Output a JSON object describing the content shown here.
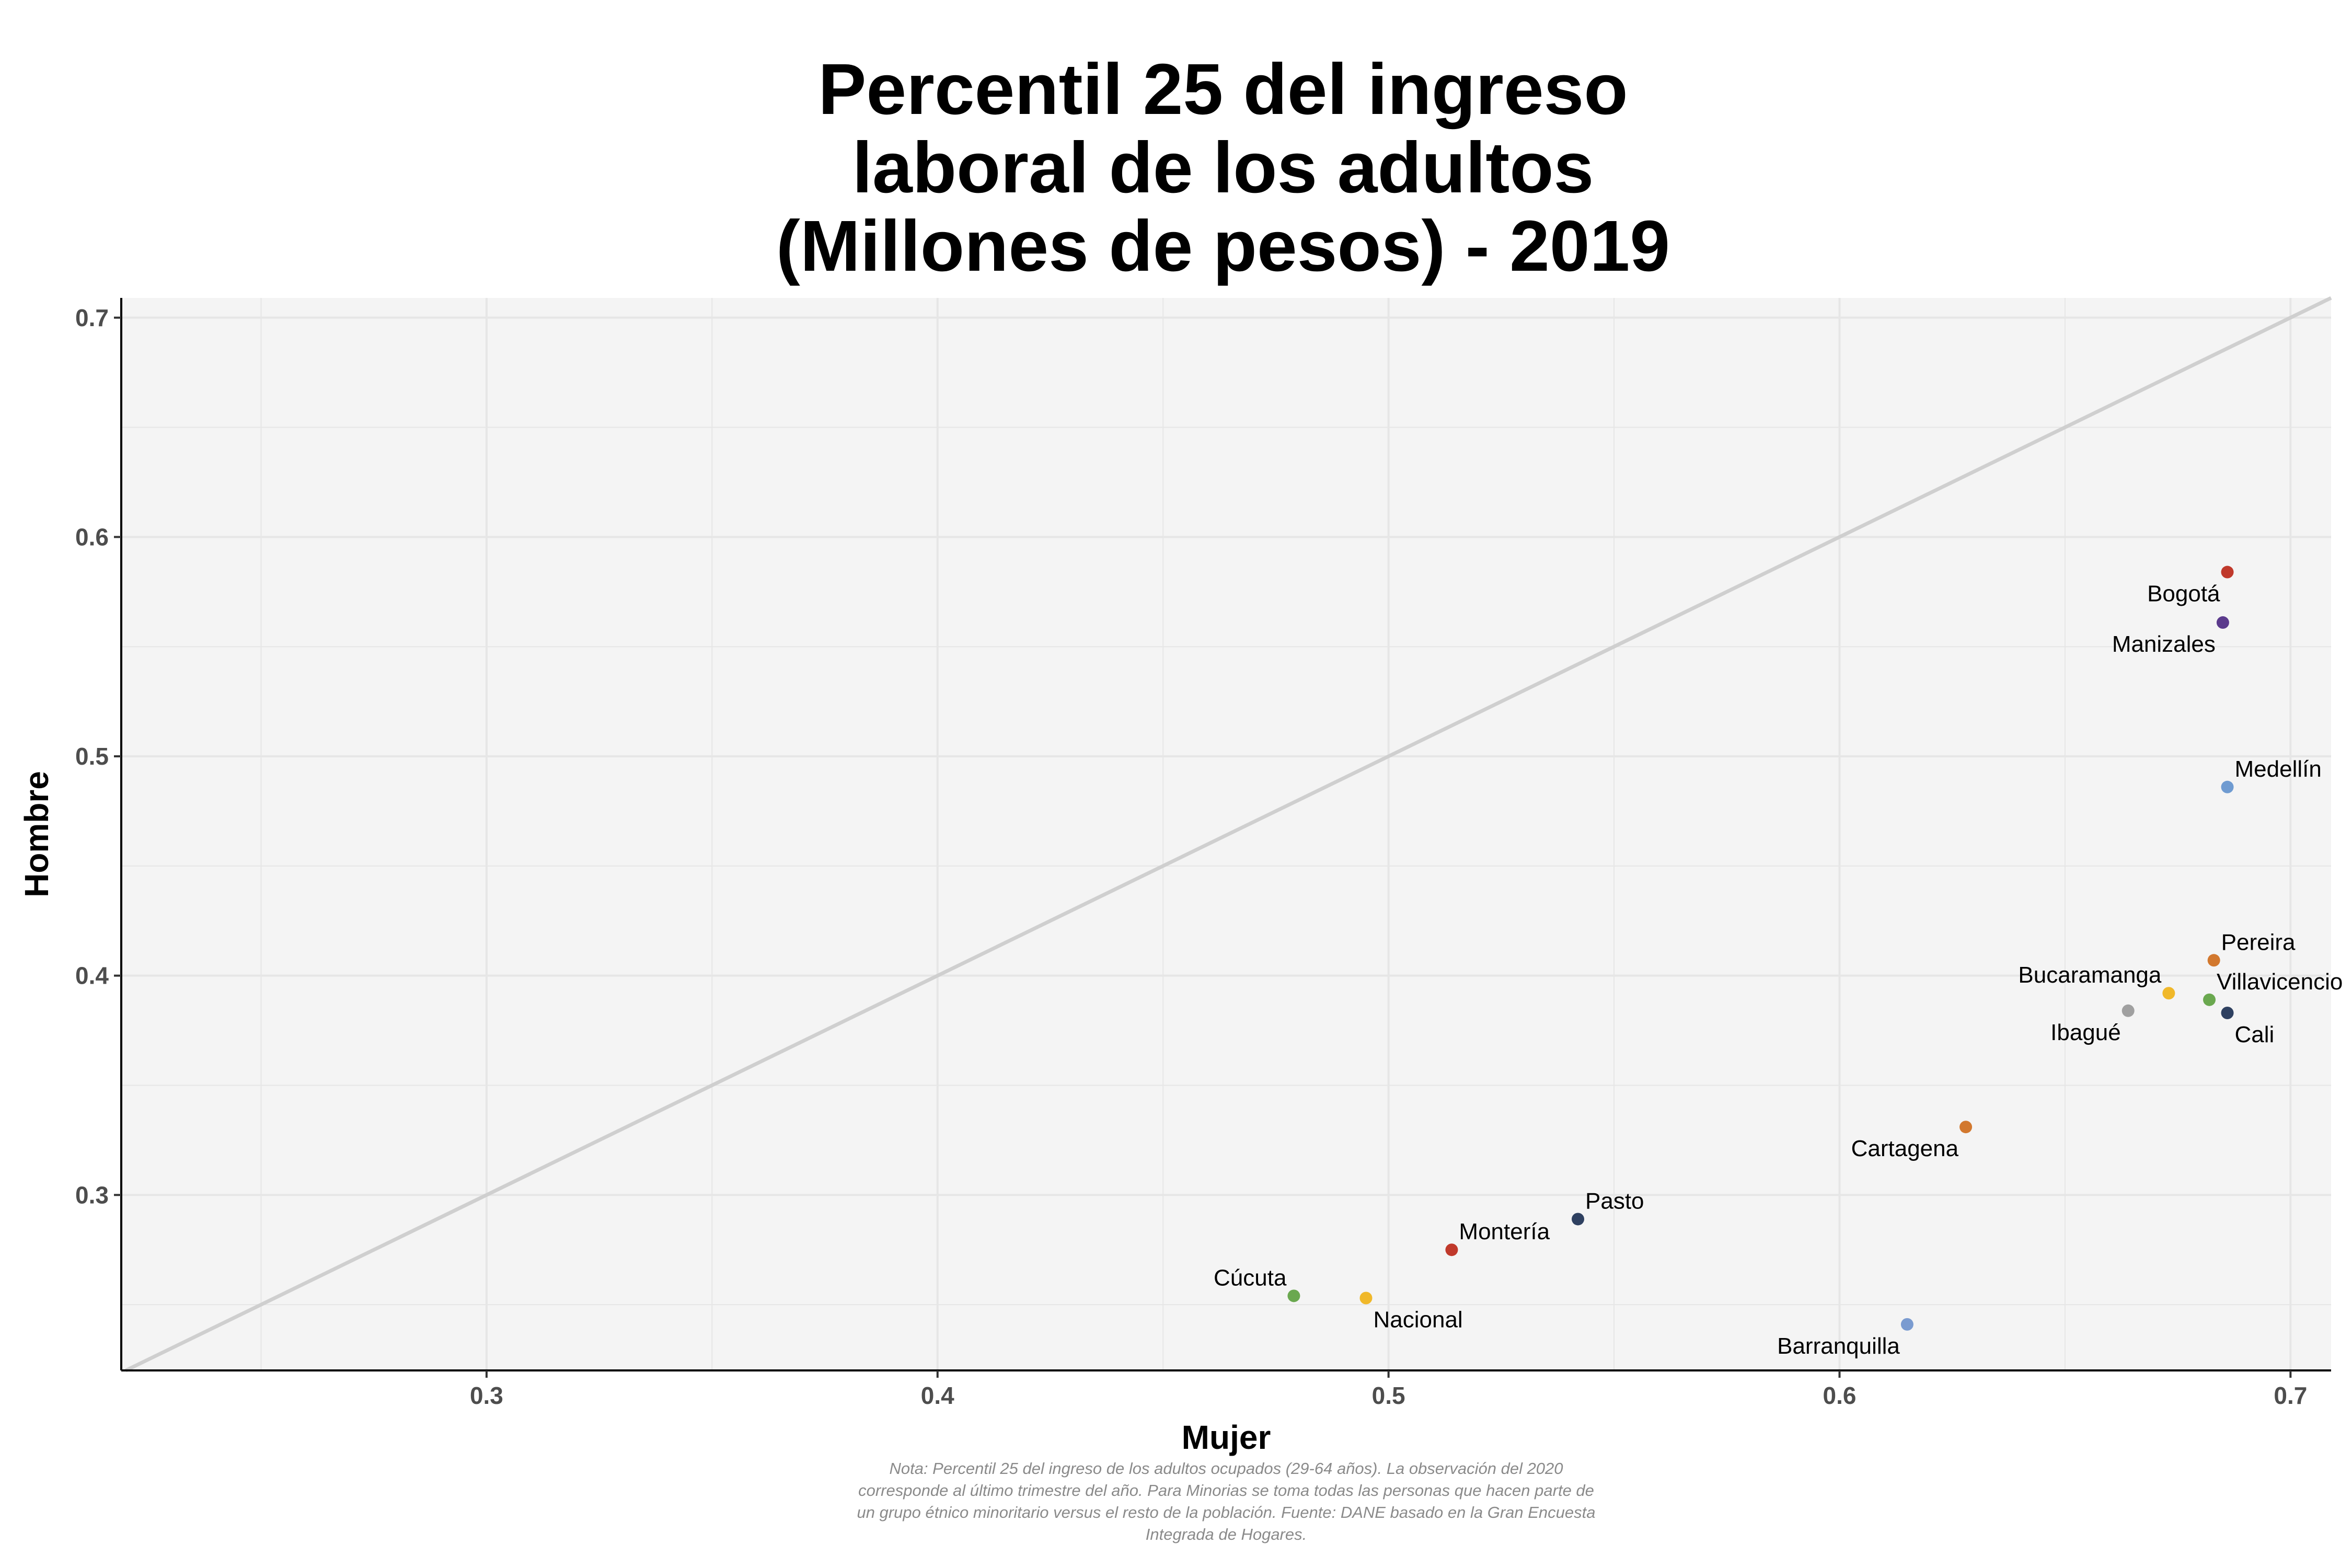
{
  "chart_data": {
    "type": "scatter",
    "title": [
      "Percentil 25 del ingreso",
      "laboral de los adultos",
      "(Millones de pesos) - 2019"
    ],
    "xlabel": "Mujer",
    "ylabel": "Hombre",
    "xlim": [
      0.219,
      0.709
    ],
    "ylim": [
      0.22,
      0.709
    ],
    "x_ticks": [
      {
        "value": 0.3,
        "label": "0.3"
      },
      {
        "value": 0.4,
        "label": "0.4"
      },
      {
        "value": 0.5,
        "label": "0.5"
      },
      {
        "value": 0.6,
        "label": "0.6"
      },
      {
        "value": 0.7,
        "label": "0.7"
      }
    ],
    "y_ticks": [
      {
        "value": 0.3,
        "label": "0.3"
      },
      {
        "value": 0.4,
        "label": "0.4"
      },
      {
        "value": 0.5,
        "label": "0.5"
      },
      {
        "value": 0.6,
        "label": "0.6"
      },
      {
        "value": 0.7,
        "label": "0.7"
      }
    ],
    "grid": true,
    "reference_line": "y = x",
    "panel_color": "#f4f4f4",
    "points": [
      {
        "label": "Bogotá",
        "x": 0.686,
        "y": 0.584,
        "color": "#c0392b",
        "label_pos": "below-left"
      },
      {
        "label": "Manizales",
        "x": 0.685,
        "y": 0.561,
        "color": "#5b3a8c",
        "label_pos": "below-left"
      },
      {
        "label": "Medellín",
        "x": 0.686,
        "y": 0.486,
        "color": "#6f9bd1",
        "label_pos": "above-right"
      },
      {
        "label": "Pereira",
        "x": 0.683,
        "y": 0.407,
        "color": "#d2782e",
        "label_pos": "above-right"
      },
      {
        "label": "Villavicencio",
        "x": 0.682,
        "y": 0.389,
        "color": "#6aa84f",
        "label_pos": "above-right"
      },
      {
        "label": "Cali",
        "x": 0.686,
        "y": 0.383,
        "color": "#2e4060",
        "label_pos": "below-right"
      },
      {
        "label": "Bucaramanga",
        "x": 0.673,
        "y": 0.392,
        "color": "#f0b82a",
        "label_pos": "above-left"
      },
      {
        "label": "Ibagué",
        "x": 0.664,
        "y": 0.384,
        "color": "#a0a0a0",
        "label_pos": "below-left"
      },
      {
        "label": "Cartagena",
        "x": 0.628,
        "y": 0.331,
        "color": "#d2782e",
        "label_pos": "below-left"
      },
      {
        "label": "Barranquilla",
        "x": 0.615,
        "y": 0.241,
        "color": "#7a9bd0",
        "label_pos": "below-left"
      },
      {
        "label": "Pasto",
        "x": 0.542,
        "y": 0.289,
        "color": "#2e4060",
        "label_pos": "above-right"
      },
      {
        "label": "Montería",
        "x": 0.514,
        "y": 0.275,
        "color": "#c0392b",
        "label_pos": "above-right"
      },
      {
        "label": "Cúcuta",
        "x": 0.479,
        "y": 0.254,
        "color": "#6aa84f",
        "label_pos": "above-left"
      },
      {
        "label": "Nacional",
        "x": 0.495,
        "y": 0.253,
        "color": "#f0b82a",
        "label_pos": "below-right"
      }
    ],
    "note": [
      "Nota: Percentil 25 del ingreso de los adultos ocupados (29-64 años). La observación del 2020",
      "corresponde al último trimestre del año. Para Minorias se toma todas las personas que hacen parte de",
      "un grupo étnico minoritario versus el resto de la población. Fuente: DANE basado en la Gran Encuesta",
      "Integrada de Hogares."
    ]
  }
}
